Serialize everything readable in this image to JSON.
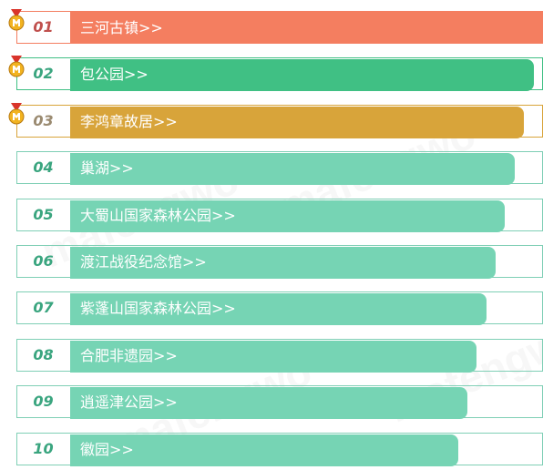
{
  "colors": {
    "frame": "#7fcfb5",
    "number": "#3aa57f",
    "rank1_bar": "#f47e60",
    "rank2_bar": "#40c084",
    "rank3_bar": "#d8a43a",
    "default_bar": "#76d4b4"
  },
  "ranking": [
    {
      "rank": "01",
      "name": "三河古镇>>",
      "share": 1.0,
      "color": "#f47e60",
      "frame": "#f47e60",
      "num_color": "#c0504d",
      "medal": true
    },
    {
      "rank": "02",
      "name": "包公园>>",
      "share": 0.98,
      "color": "#40c084",
      "frame": "#40c084",
      "num_color": "#3aa57f",
      "medal": true
    },
    {
      "rank": "03",
      "name": "李鸿章故居>>",
      "share": 0.96,
      "color": "#d8a43a",
      "frame": "#d8a43a",
      "num_color": "#9a8a70",
      "medal": true
    },
    {
      "rank": "04",
      "name": "巢湖>>",
      "share": 0.94,
      "color": "#76d4b4",
      "frame": "#7fcfb5",
      "num_color": "#3aa57f",
      "medal": false
    },
    {
      "rank": "05",
      "name": "大蜀山国家森林公园>>",
      "share": 0.92,
      "color": "#76d4b4",
      "frame": "#7fcfb5",
      "num_color": "#3aa57f",
      "medal": false
    },
    {
      "rank": "06",
      "name": "渡江战役纪念馆>>",
      "share": 0.9,
      "color": "#76d4b4",
      "frame": "#7fcfb5",
      "num_color": "#3aa57f",
      "medal": false
    },
    {
      "rank": "07",
      "name": "紫蓬山国家森林公园>>",
      "share": 0.88,
      "color": "#76d4b4",
      "frame": "#7fcfb5",
      "num_color": "#3aa57f",
      "medal": false
    },
    {
      "rank": "08",
      "name": "合肥非遗园>>",
      "share": 0.86,
      "color": "#76d4b4",
      "frame": "#7fcfb5",
      "num_color": "#3aa57f",
      "medal": false
    },
    {
      "rank": "09",
      "name": "逍遥津公园>>",
      "share": 0.84,
      "color": "#76d4b4",
      "frame": "#7fcfb5",
      "num_color": "#3aa57f",
      "medal": false
    },
    {
      "rank": "10",
      "name": "徽园>>",
      "share": 0.82,
      "color": "#76d4b4",
      "frame": "#7fcfb5",
      "num_color": "#3aa57f",
      "medal": false
    }
  ]
}
